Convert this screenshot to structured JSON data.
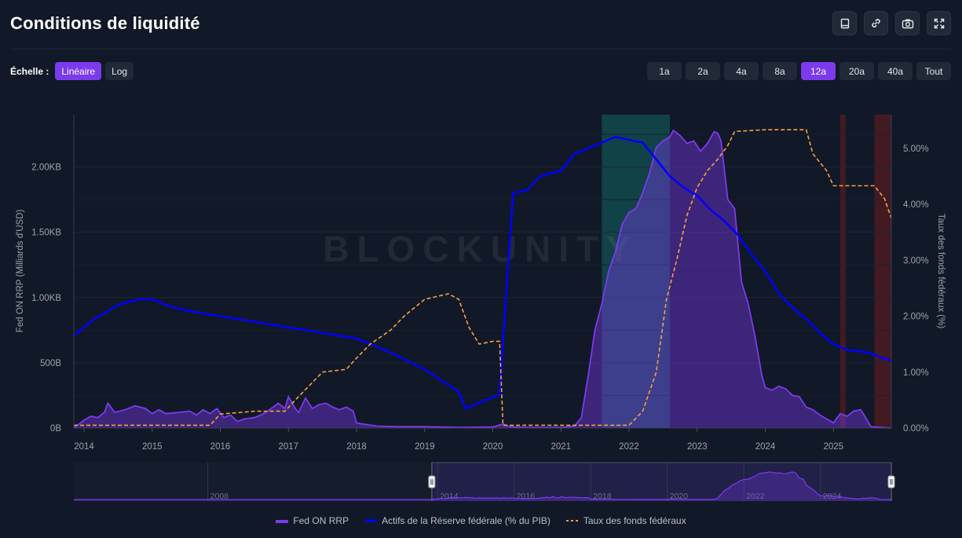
{
  "page": {
    "title": "Conditions de liquidité"
  },
  "toolbar": {
    "icons": [
      "book-icon",
      "link-icon",
      "camera-icon",
      "fullscreen-icon"
    ]
  },
  "scale": {
    "label": "Échelle :",
    "options": [
      "Linéaire",
      "Log"
    ],
    "selected": "Linéaire"
  },
  "ranges": {
    "options": [
      "1a",
      "2a",
      "4a",
      "8a",
      "12a",
      "20a",
      "40a",
      "Tout"
    ],
    "selected": "12a"
  },
  "watermark": "BLOCKUNITY",
  "colors": {
    "rrp": "#7c3aed",
    "fed_assets": "#0000ff",
    "fed_funds": "#f5a04a",
    "background": "#111827"
  },
  "chart_data": {
    "type": "area",
    "x_ticks": [
      "2014",
      "2015",
      "2016",
      "2017",
      "2018",
      "2019",
      "2020",
      "2021",
      "2022",
      "2023",
      "2024",
      "2025"
    ],
    "xlim": [
      2013.85,
      2025.85
    ],
    "y_left": {
      "label": "Fed ON RRP (Milliards d'USD)",
      "ticks": [
        "0B",
        "500B",
        "1.00KB",
        "1.50KB",
        "2.00KB"
      ],
      "range": [
        0,
        2400
      ]
    },
    "y_right": {
      "label": "Taux des fonds fédéraux (%)",
      "ticks": [
        "0.00%",
        "1.00%",
        "2.00%",
        "3.00%",
        "4.00%",
        "5.00%"
      ],
      "range": [
        0,
        5.6
      ]
    },
    "shaded_regions": [
      {
        "from": 2021.6,
        "to": 2022.6,
        "color": "#0f766e"
      },
      {
        "from": 2025.1,
        "to": 2025.18,
        "color": "#7f1d1d"
      },
      {
        "from": 2025.6,
        "to": 2025.85,
        "color": "#7f1d1d"
      }
    ],
    "series": [
      {
        "name": "Fed ON RRP",
        "axis": "left",
        "style": "area",
        "points": [
          [
            2013.85,
            0
          ],
          [
            2014.0,
            60
          ],
          [
            2014.1,
            90
          ],
          [
            2014.2,
            80
          ],
          [
            2014.3,
            120
          ],
          [
            2014.35,
            190
          ],
          [
            2014.45,
            120
          ],
          [
            2014.6,
            140
          ],
          [
            2014.75,
            170
          ],
          [
            2014.9,
            150
          ],
          [
            2015.0,
            110
          ],
          [
            2015.1,
            140
          ],
          [
            2015.2,
            110
          ],
          [
            2015.4,
            120
          ],
          [
            2015.55,
            130
          ],
          [
            2015.65,
            100
          ],
          [
            2015.75,
            140
          ],
          [
            2015.85,
            110
          ],
          [
            2015.95,
            150
          ],
          [
            2016.05,
            80
          ],
          [
            2016.15,
            100
          ],
          [
            2016.25,
            50
          ],
          [
            2016.35,
            70
          ],
          [
            2016.5,
            80
          ],
          [
            2016.6,
            100
          ],
          [
            2016.7,
            130
          ],
          [
            2016.85,
            190
          ],
          [
            2016.95,
            150
          ],
          [
            2017.0,
            240
          ],
          [
            2017.1,
            150
          ],
          [
            2017.15,
            120
          ],
          [
            2017.25,
            230
          ],
          [
            2017.35,
            150
          ],
          [
            2017.45,
            180
          ],
          [
            2017.55,
            190
          ],
          [
            2017.65,
            160
          ],
          [
            2017.75,
            140
          ],
          [
            2017.85,
            160
          ],
          [
            2017.95,
            130
          ],
          [
            2018.0,
            40
          ],
          [
            2018.1,
            30
          ],
          [
            2018.3,
            15
          ],
          [
            2018.6,
            10
          ],
          [
            2019.0,
            10
          ],
          [
            2019.5,
            5
          ],
          [
            2020.0,
            8
          ],
          [
            2020.15,
            30
          ],
          [
            2020.25,
            10
          ],
          [
            2020.5,
            5
          ],
          [
            2021.0,
            5
          ],
          [
            2021.2,
            15
          ],
          [
            2021.3,
            80
          ],
          [
            2021.4,
            400
          ],
          [
            2021.5,
            750
          ],
          [
            2021.6,
            950
          ],
          [
            2021.7,
            1200
          ],
          [
            2021.8,
            1350
          ],
          [
            2021.9,
            1560
          ],
          [
            2022.0,
            1650
          ],
          [
            2022.1,
            1680
          ],
          [
            2022.2,
            1800
          ],
          [
            2022.3,
            1950
          ],
          [
            2022.4,
            2150
          ],
          [
            2022.5,
            2200
          ],
          [
            2022.6,
            2230
          ],
          [
            2022.65,
            2280
          ],
          [
            2022.75,
            2240
          ],
          [
            2022.85,
            2180
          ],
          [
            2022.95,
            2200
          ],
          [
            2023.05,
            2120
          ],
          [
            2023.15,
            2180
          ],
          [
            2023.25,
            2270
          ],
          [
            2023.3,
            2260
          ],
          [
            2023.35,
            2200
          ],
          [
            2023.45,
            1750
          ],
          [
            2023.55,
            1680
          ],
          [
            2023.65,
            1120
          ],
          [
            2023.75,
            950
          ],
          [
            2023.85,
            700
          ],
          [
            2023.95,
            400
          ],
          [
            2024.0,
            310
          ],
          [
            2024.1,
            290
          ],
          [
            2024.2,
            320
          ],
          [
            2024.3,
            300
          ],
          [
            2024.4,
            250
          ],
          [
            2024.5,
            240
          ],
          [
            2024.6,
            160
          ],
          [
            2024.7,
            140
          ],
          [
            2024.8,
            100
          ],
          [
            2024.9,
            70
          ],
          [
            2025.0,
            40
          ],
          [
            2025.1,
            110
          ],
          [
            2025.2,
            90
          ],
          [
            2025.3,
            130
          ],
          [
            2025.4,
            140
          ],
          [
            2025.45,
            100
          ],
          [
            2025.55,
            10
          ],
          [
            2025.85,
            0
          ]
        ]
      },
      {
        "name": "Actifs de la Réserve fédérale (% du PIB)",
        "axis": "right",
        "style": "line",
        "points": [
          [
            2013.85,
            1.65
          ],
          [
            2014.0,
            1.8
          ],
          [
            2014.15,
            1.95
          ],
          [
            2014.3,
            2.05
          ],
          [
            2014.5,
            2.2
          ],
          [
            2014.8,
            2.3
          ],
          [
            2015.0,
            2.3
          ],
          [
            2015.2,
            2.2
          ],
          [
            2015.5,
            2.1
          ],
          [
            2016.0,
            2.0
          ],
          [
            2016.5,
            1.9
          ],
          [
            2017.0,
            1.8
          ],
          [
            2017.5,
            1.7
          ],
          [
            2018.0,
            1.6
          ],
          [
            2018.5,
            1.35
          ],
          [
            2019.0,
            1.05
          ],
          [
            2019.5,
            0.65
          ],
          [
            2019.6,
            0.35
          ],
          [
            2019.8,
            0.45
          ],
          [
            2020.0,
            0.55
          ],
          [
            2020.1,
            0.6
          ],
          [
            2020.2,
            2.5
          ],
          [
            2020.3,
            4.2
          ],
          [
            2020.5,
            4.25
          ],
          [
            2020.7,
            4.5
          ],
          [
            2021.0,
            4.6
          ],
          [
            2021.2,
            4.9
          ],
          [
            2021.5,
            5.05
          ],
          [
            2021.8,
            5.2
          ],
          [
            2022.0,
            5.15
          ],
          [
            2022.2,
            5.1
          ],
          [
            2022.4,
            4.8
          ],
          [
            2022.6,
            4.5
          ],
          [
            2022.8,
            4.3
          ],
          [
            2023.0,
            4.15
          ],
          [
            2023.2,
            3.9
          ],
          [
            2023.4,
            3.7
          ],
          [
            2023.6,
            3.45
          ],
          [
            2023.8,
            3.1
          ],
          [
            2024.0,
            2.8
          ],
          [
            2024.2,
            2.4
          ],
          [
            2024.4,
            2.15
          ],
          [
            2024.6,
            1.95
          ],
          [
            2024.8,
            1.7
          ],
          [
            2025.0,
            1.5
          ],
          [
            2025.2,
            1.4
          ],
          [
            2025.5,
            1.35
          ],
          [
            2025.85,
            1.2
          ]
        ]
      },
      {
        "name": "Taux des fonds fédéraux",
        "axis": "right",
        "style": "dashed",
        "points": [
          [
            2013.85,
            0.05
          ],
          [
            2014.5,
            0.05
          ],
          [
            2015.0,
            0.05
          ],
          [
            2015.5,
            0.05
          ],
          [
            2015.85,
            0.05
          ],
          [
            2016.0,
            0.25
          ],
          [
            2016.5,
            0.3
          ],
          [
            2016.95,
            0.3
          ],
          [
            2017.1,
            0.5
          ],
          [
            2017.3,
            0.75
          ],
          [
            2017.5,
            1.0
          ],
          [
            2017.85,
            1.05
          ],
          [
            2018.0,
            1.25
          ],
          [
            2018.2,
            1.5
          ],
          [
            2018.5,
            1.75
          ],
          [
            2018.7,
            2.0
          ],
          [
            2019.0,
            2.3
          ],
          [
            2019.35,
            2.4
          ],
          [
            2019.5,
            2.3
          ],
          [
            2019.65,
            1.8
          ],
          [
            2019.8,
            1.5
          ],
          [
            2020.0,
            1.55
          ],
          [
            2020.1,
            1.55
          ],
          [
            2020.15,
            0.05
          ],
          [
            2020.5,
            0.05
          ],
          [
            2021.0,
            0.05
          ],
          [
            2022.0,
            0.05
          ],
          [
            2022.2,
            0.3
          ],
          [
            2022.4,
            1.0
          ],
          [
            2022.55,
            2.3
          ],
          [
            2022.7,
            3.0
          ],
          [
            2022.85,
            3.8
          ],
          [
            2023.0,
            4.3
          ],
          [
            2023.15,
            4.6
          ],
          [
            2023.3,
            4.8
          ],
          [
            2023.45,
            5.05
          ],
          [
            2023.55,
            5.3
          ],
          [
            2024.0,
            5.33
          ],
          [
            2024.6,
            5.33
          ],
          [
            2024.7,
            4.9
          ],
          [
            2024.9,
            4.6
          ],
          [
            2025.0,
            4.33
          ],
          [
            2025.6,
            4.33
          ],
          [
            2025.75,
            4.1
          ],
          [
            2025.85,
            3.75
          ]
        ]
      }
    ],
    "navigator": {
      "x_ticks": [
        "2008",
        "2014",
        "2016",
        "2018",
        "2020",
        "2022",
        "2024"
      ],
      "xlim": [
        2004.5,
        2025.85
      ],
      "window": [
        2013.85,
        2025.85
      ]
    },
    "legend": {
      "position": "bottom"
    }
  }
}
